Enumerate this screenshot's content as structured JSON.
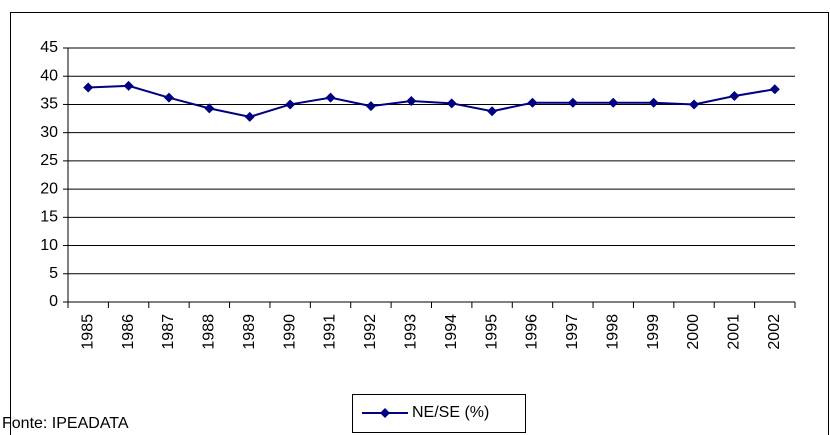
{
  "chart_data": {
    "type": "line",
    "categories": [
      "1985",
      "1986",
      "1987",
      "1988",
      "1989",
      "1990",
      "1991",
      "1992",
      "1993",
      "1994",
      "1995",
      "1996",
      "1997",
      "1998",
      "1999",
      "2000",
      "2001",
      "2002"
    ],
    "series": [
      {
        "name": "NE/SE (%)",
        "color": "#000080",
        "values": [
          38,
          38.3,
          36.2,
          34.3,
          32.8,
          35,
          36.2,
          34.7,
          35.6,
          35.2,
          33.8,
          35.3,
          35.3,
          35.3,
          35.3,
          35,
          36.5,
          37.7
        ]
      }
    ],
    "ylim": [
      0,
      45
    ],
    "yticks": [
      0,
      5,
      10,
      15,
      20,
      25,
      30,
      35,
      40,
      45
    ],
    "grid": true,
    "legend": "bottom",
    "source": "Fonte: IPEADATA"
  }
}
